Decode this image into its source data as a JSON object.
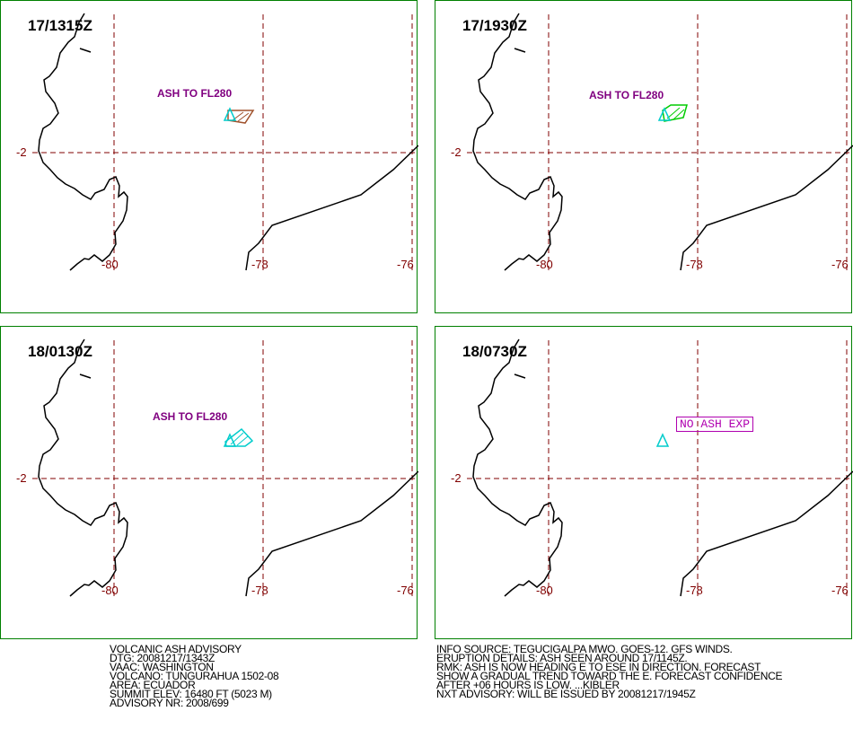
{
  "panels": [
    {
      "time": "17/1315Z",
      "ash_label": "ASH TO FL280",
      "plume_color": "#a0522d"
    },
    {
      "time": "17/1930Z",
      "ash_label": "ASH TO FL280",
      "plume_color": "#00cc00"
    },
    {
      "time": "18/0130Z",
      "ash_label": "ASH TO FL280",
      "plume_color": "#00cccc"
    },
    {
      "time": "18/0730Z",
      "no_ash_label": "NO ASH EXP"
    }
  ],
  "axis_labels": {
    "lat_minus2": "-2",
    "lon_minus80": "-80",
    "lon_minus78": "-78",
    "lon_minus76": "-76"
  },
  "colors": {
    "grid": "#800000",
    "border": "#008000",
    "coast": "#000000",
    "volcano": "#00cccc",
    "label": "#800080"
  },
  "advisory_left": [
    "VOLCANIC ASH ADVISORY",
    "DTG: 20081217/1343Z",
    "VAAC: WASHINGTON",
    "VOLCANO: TUNGURAHUA 1502-08",
    "AREA: ECUADOR",
    "SUMMIT ELEV: 16480 FT (5023 M)",
    "ADVISORY NR: 2008/699"
  ],
  "advisory_right": [
    "INFO SOURCE: TEGUCIGALPA MWO. GOES-12. GFS WINDS.",
    "ERUPTION DETAILS: ASH SEEN AROUND 17/1145Z.",
    "RMK: ASH IS NOW HEADING E TO ESE IN DIRECTION. FORECAST",
    "SHOW A GRADUAL TREND TOWARD THE E. FORECAST CONFIDENCE",
    "AFTER +06 HOURS IS LOW. ...KIBLER",
    "NXT ADVISORY: WILL BE ISSUED BY 20081217/1945Z"
  ]
}
